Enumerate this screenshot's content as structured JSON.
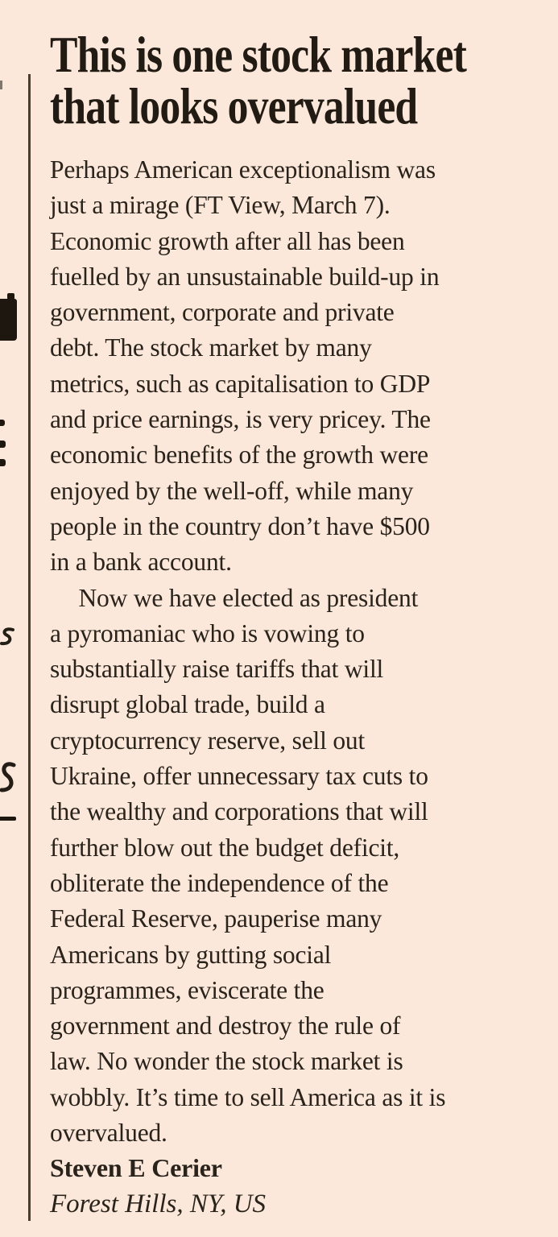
{
  "page": {
    "background_color": "#fbe8da",
    "ink_color": "#2a231b",
    "headline_color": "#211b14",
    "rule_color": "#473e32"
  },
  "letter": {
    "headline_lines": [
      "This is one stock market",
      "that looks overvalued"
    ],
    "body_paragraph_1": [
      "Perhaps American exceptionalism was",
      "just a mirage (FT View, March 7).",
      "Economic growth after all has been",
      "fuelled by an unsustainable build-up in",
      "government, corporate and private",
      "debt. The stock market by many",
      "metrics, such as capitalisation to GDP",
      "and price earnings, is very pricey. The",
      "economic benefits of the growth were",
      "enjoyed by the well-off, while many",
      "people in the country don’t have $500",
      "in a bank account."
    ],
    "body_paragraph_2": [
      "Now we have elected as president",
      "a pyromaniac who is vowing to",
      "substantially raise tariffs that will",
      "disrupt global trade, build a",
      "cryptocurrency reserve, sell out",
      "Ukraine, offer unnecessary tax cuts to",
      "the wealthy and corporations that will",
      "further blow out the budget deficit,",
      "obliterate the independence of the",
      "Federal Reserve, pauperise many",
      "Americans by gutting social",
      "programmes, eviscerate the",
      "government and destroy the rule of",
      "law. No wonder the stock market is",
      "wobbly. It’s time to sell America as it is",
      "overvalued."
    ],
    "author_name": "Steven E Cerier",
    "author_location": "Forest Hills, NY, US"
  }
}
